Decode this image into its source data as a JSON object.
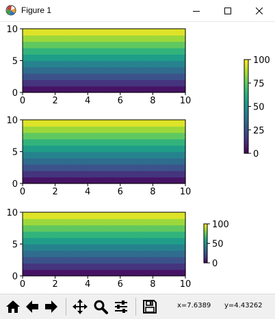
{
  "window": {
    "title": "Figure 1",
    "minimize_icon": "minimize-icon",
    "maximize_icon": "maximize-icon",
    "close_icon": "close-icon"
  },
  "toolbar": {
    "buttons": [
      {
        "name": "home-button",
        "icon": "home-icon"
      },
      {
        "name": "back-button",
        "icon": "back-arrow-icon"
      },
      {
        "name": "forward-button",
        "icon": "forward-arrow-icon"
      },
      {
        "name": "pan-button",
        "icon": "move-icon"
      },
      {
        "name": "zoom-button",
        "icon": "magnifier-icon"
      },
      {
        "name": "configure-subplots-button",
        "icon": "sliders-icon"
      },
      {
        "name": "save-button",
        "icon": "floppy-disk-icon"
      }
    ],
    "x_readout": "x=7.6389",
    "y_readout": "y=4.43262"
  },
  "chart_data": [
    {
      "type": "heatmap",
      "description_colormap": "viridis",
      "x_range": [
        0,
        10
      ],
      "y_range": [
        0,
        10
      ],
      "x_ticks": [
        "0",
        "2",
        "4",
        "6",
        "8",
        "10"
      ],
      "y_ticks": [
        "0",
        "5",
        "10"
      ],
      "rows": 10,
      "cols": 10,
      "row_values": [
        5,
        15,
        25,
        35,
        45,
        55,
        65,
        75,
        85,
        95
      ],
      "value_range": [
        0,
        100
      ]
    },
    {
      "type": "heatmap",
      "description_colormap": "viridis",
      "x_range": [
        0,
        10
      ],
      "y_range": [
        0,
        10
      ],
      "x_ticks": [
        "0",
        "2",
        "4",
        "6",
        "8",
        "10"
      ],
      "y_ticks": [
        "0",
        "5",
        "10"
      ],
      "rows": 10,
      "cols": 10,
      "row_values": [
        5,
        15,
        25,
        35,
        45,
        55,
        65,
        75,
        85,
        95
      ],
      "value_range": [
        0,
        100
      ]
    },
    {
      "type": "heatmap",
      "description_colormap": "viridis",
      "x_range": [
        0,
        10
      ],
      "y_range": [
        0,
        10
      ],
      "x_ticks": [
        "0",
        "2",
        "4",
        "6",
        "8",
        "10"
      ],
      "y_ticks": [
        "0",
        "5",
        "10"
      ],
      "rows": 10,
      "cols": 10,
      "row_values": [
        5,
        15,
        25,
        35,
        45,
        55,
        65,
        75,
        85,
        95
      ],
      "value_range": [
        0,
        100
      ]
    }
  ],
  "colorbars": [
    {
      "ticks": [
        "0",
        "25",
        "50",
        "75",
        "100"
      ],
      "tick_values": [
        0,
        25,
        50,
        75,
        100
      ],
      "range": [
        0,
        100
      ]
    },
    {
      "ticks": [
        "0",
        "50",
        "100"
      ],
      "tick_values": [
        0,
        50,
        100
      ],
      "range": [
        0,
        100
      ]
    }
  ]
}
